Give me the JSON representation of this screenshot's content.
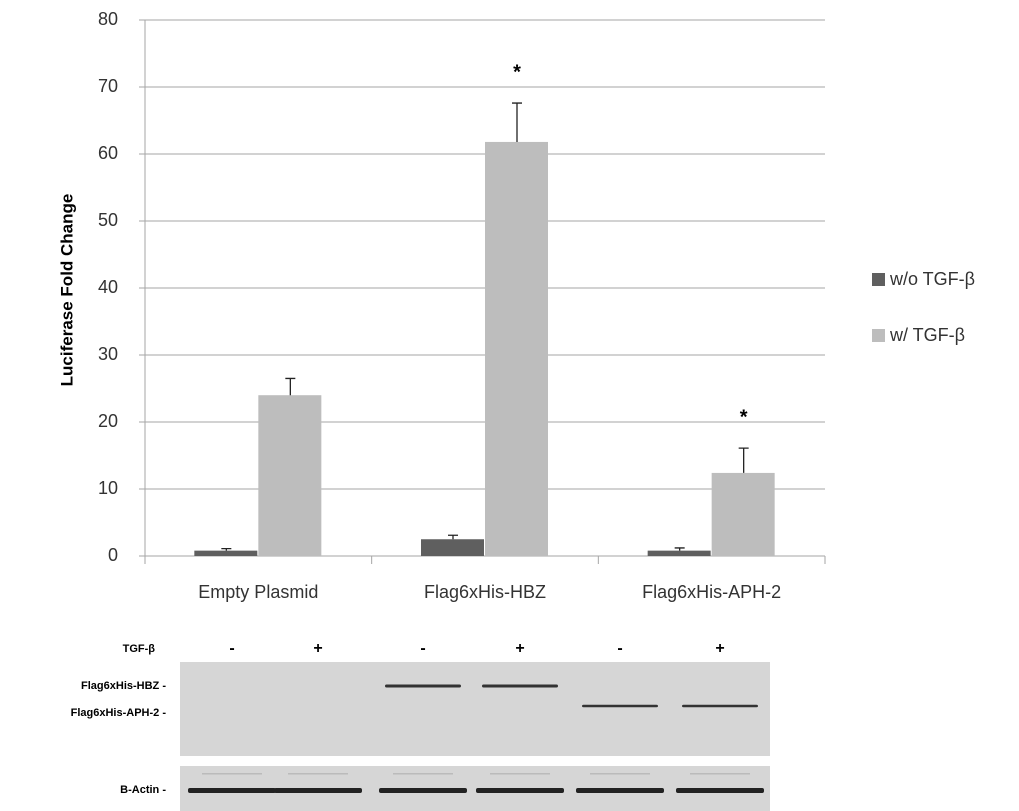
{
  "chart_data": {
    "type": "bar",
    "ylabel": "Luciferase Fold Change",
    "categories": [
      "Empty Plasmid",
      "Flag6xHis-HBZ",
      "Flag6xHis-APH-2"
    ],
    "series": [
      {
        "name": "w/o TGF-β",
        "color": "#5f5f5f",
        "values": [
          0.8,
          2.5,
          0.8
        ],
        "errors": [
          0.3,
          0.6,
          0.4
        ]
      },
      {
        "name": "w/ TGF-β",
        "color": "#bdbdbd",
        "values": [
          24,
          61.8,
          12.4
        ],
        "errors": [
          2.5,
          5.8,
          3.7
        ],
        "annotations": [
          null,
          "*",
          "*"
        ]
      }
    ],
    "ylim": [
      0,
      80
    ],
    "yticks": [
      0,
      10,
      20,
      30,
      40,
      50,
      60,
      70,
      80
    ],
    "grid": true,
    "legend": "right"
  },
  "blot": {
    "treatment_label": "TGF-β",
    "lanes": [
      "-",
      "+",
      "-",
      "+",
      "-",
      "+"
    ],
    "rows": [
      "Flag6xHis-HBZ -",
      "Flag6xHis-APH-2 -",
      "B-Actin -"
    ]
  }
}
